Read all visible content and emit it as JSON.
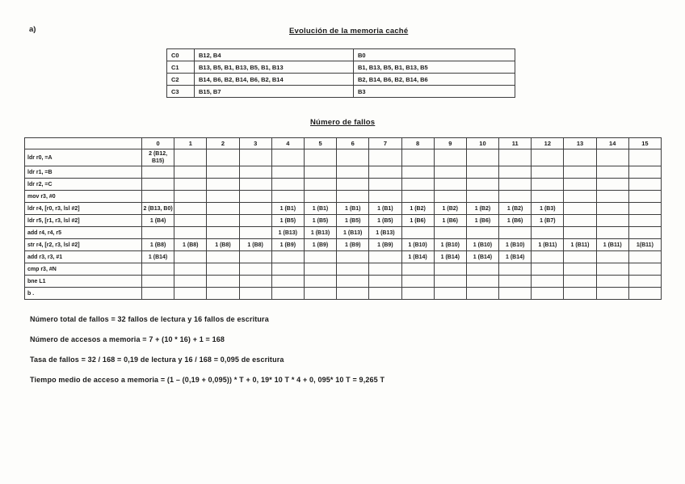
{
  "page": {
    "section_label": "a)",
    "cache_title": "Evolución de la memoria caché",
    "misses_title": "Número de fallos"
  },
  "cache_table": {
    "rows": [
      {
        "set": "C0",
        "evolution": "B12, B4",
        "final": "B0"
      },
      {
        "set": "C1",
        "evolution": "B13, B5, B1, B13, B5, B1, B13",
        "final": "B1, B13, B5, B1, B13, B5"
      },
      {
        "set": "C2",
        "evolution": "B14, B6, B2, B14, B6, B2, B14",
        "final": "B2, B14, B6, B2, B14, B6"
      },
      {
        "set": "C3",
        "evolution": "B15, B7",
        "final": "B3"
      }
    ]
  },
  "misses_table": {
    "iteration_headers": [
      "0",
      "1",
      "2",
      "3",
      "4",
      "5",
      "6",
      "7",
      "8",
      "9",
      "10",
      "11",
      "12",
      "13",
      "14",
      "15"
    ],
    "rows": [
      {
        "instruction": "ldr r0, =A",
        "cells": [
          "2 (B12, B15)",
          "",
          "",
          "",
          "",
          "",
          "",
          "",
          "",
          "",
          "",
          "",
          "",
          "",
          "",
          ""
        ]
      },
      {
        "instruction": "ldr r1, =B",
        "cells": [
          "",
          "",
          "",
          "",
          "",
          "",
          "",
          "",
          "",
          "",
          "",
          "",
          "",
          "",
          "",
          ""
        ]
      },
      {
        "instruction": "ldr r2, =C",
        "cells": [
          "",
          "",
          "",
          "",
          "",
          "",
          "",
          "",
          "",
          "",
          "",
          "",
          "",
          "",
          "",
          ""
        ]
      },
      {
        "instruction": "mov r3, #0",
        "cells": [
          "",
          "",
          "",
          "",
          "",
          "",
          "",
          "",
          "",
          "",
          "",
          "",
          "",
          "",
          "",
          ""
        ]
      },
      {
        "instruction": "ldr r4, [r0, r3, lsl #2]",
        "cells": [
          "2 (B13, B0)",
          "",
          "",
          "",
          "1 (B1)",
          "1 (B1)",
          "1 (B1)",
          "1 (B1)",
          "1 (B2)",
          "1 (B2)",
          "1 (B2)",
          "1 (B2)",
          "1 (B3)",
          "",
          "",
          ""
        ]
      },
      {
        "instruction": "ldr r5, [r1, r3, lsl #2]",
        "cells": [
          "1 (B4)",
          "",
          "",
          "",
          "1 (B5)",
          "1 (B5)",
          "1 (B5)",
          "1 (B5)",
          "1 (B6)",
          "1 (B6)",
          "1 (B6)",
          "1 (B6)",
          "1 (B7)",
          "",
          "",
          ""
        ]
      },
      {
        "instruction": "add r4, r4, r5",
        "cells": [
          "",
          "",
          "",
          "",
          "1 (B13)",
          "1 (B13)",
          "1 (B13)",
          "1 (B13)",
          "",
          "",
          "",
          "",
          "",
          "",
          "",
          ""
        ]
      },
      {
        "instruction": "str r4, [r2, r3, lsl #2]",
        "cells": [
          "1 (B8)",
          "1 (B8)",
          "1 (B8)",
          "1 (B8)",
          "1 (B9)",
          "1 (B9)",
          "1 (B9)",
          "1 (B9)",
          "1 (B10)",
          "1 (B10)",
          "1 (B10)",
          "1 (B10)",
          "1 (B11)",
          "1 (B11)",
          "1 (B11)",
          "1(B11)"
        ]
      },
      {
        "instruction": "add r3, r3, #1",
        "cells": [
          "1 (B14)",
          "",
          "",
          "",
          "",
          "",
          "",
          "",
          "1 (B14)",
          "1 (B14)",
          "1 (B14)",
          "1 (B14)",
          "",
          "",
          "",
          ""
        ]
      },
      {
        "instruction": "cmp r3, #N",
        "cells": [
          "",
          "",
          "",
          "",
          "",
          "",
          "",
          "",
          "",
          "",
          "",
          "",
          "",
          "",
          "",
          ""
        ]
      },
      {
        "instruction": "bne L1",
        "cells": [
          "",
          "",
          "",
          "",
          "",
          "",
          "",
          "",
          "",
          "",
          "",
          "",
          "",
          "",
          "",
          ""
        ]
      },
      {
        "instruction": "b .",
        "cells": [
          "",
          "",
          "",
          "",
          "",
          "",
          "",
          "",
          "",
          "",
          "",
          "",
          "",
          "",
          "",
          ""
        ]
      }
    ]
  },
  "notes": [
    "Número total de fallos = 32 fallos de lectura y 16 fallos de escritura",
    "Número de accesos a memoria = 7 + (10 * 16) + 1 = 168",
    "Tasa de fallos = 32 / 168 = 0,19 de lectura y 16 / 168 = 0,095 de escritura",
    "Tiempo medio de acceso a memoria = (1 – (0,19 + 0,095)) * T +  0, 19* 10 T * 4 +  0, 095* 10 T =  9,265 T"
  ]
}
